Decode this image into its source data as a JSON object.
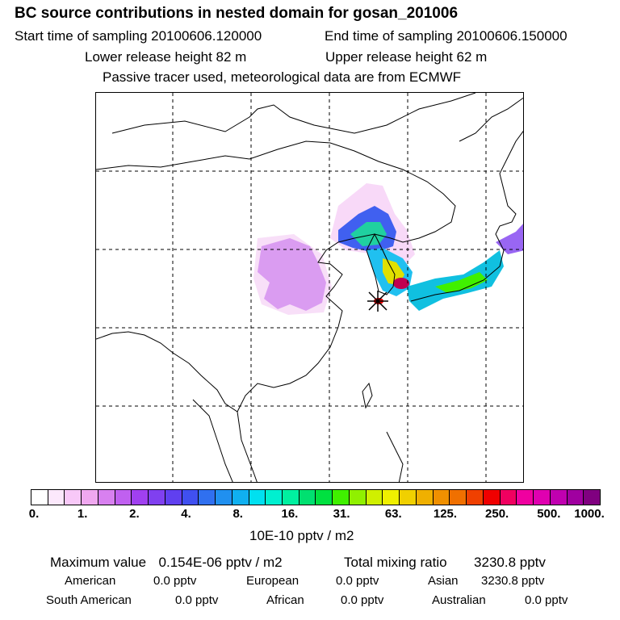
{
  "title": "BC  source contributions in nested domain for gosan_201006",
  "sampling": {
    "start": "Start time of sampling 20100606.120000",
    "end": "End time of sampling 20100606.150000"
  },
  "release": {
    "lower": "Lower release height   82 m",
    "upper": "Upper release height   62 m"
  },
  "note": "Passive tracer used, meteorological data are from ECMWF",
  "colorbar": {
    "ticks": [
      "0.",
      "1.",
      "2.",
      "4.",
      "8.",
      "16.",
      "31.",
      "63.",
      "125.",
      "250.",
      "500.",
      "1000."
    ],
    "colors": [
      "#ffffff",
      "#fce8fc",
      "#f8c8f8",
      "#f0a8f0",
      "#d880f0",
      "#c060f0",
      "#a040f0",
      "#8040f0",
      "#6040f0",
      "#4050f0",
      "#3070f0",
      "#2090f0",
      "#10b0f0",
      "#00e0f0",
      "#00f0d0",
      "#00f0a0",
      "#00e070",
      "#00e040",
      "#40f000",
      "#90f000",
      "#d0f000",
      "#f0f000",
      "#f0d000",
      "#f0b000",
      "#f09000",
      "#f07000",
      "#f04000",
      "#f00000",
      "#f00060",
      "#f000a0",
      "#e000b0",
      "#c000b0",
      "#a000a0",
      "#800080"
    ],
    "unit": "10E-10 pptv / m2"
  },
  "stats": {
    "max_label": "Maximum value",
    "max_value": "0.154E-06 pptv / m2",
    "total_label": "Total mixing ratio",
    "total_value": "3230.8 pptv",
    "regions": [
      {
        "name": "American",
        "value": "0.0 pptv"
      },
      {
        "name": "European",
        "value": "0.0 pptv"
      },
      {
        "name": "Asian",
        "value": "3230.8 pptv"
      },
      {
        "name": "South American",
        "value": "0.0 pptv"
      },
      {
        "name": "African",
        "value": "0.0 pptv"
      },
      {
        "name": "Australian",
        "value": "0.0 pptv"
      }
    ]
  }
}
